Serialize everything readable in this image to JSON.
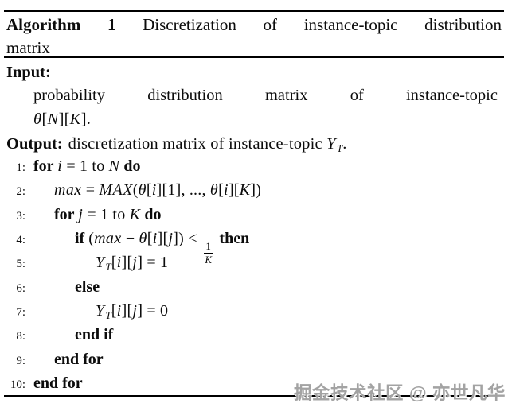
{
  "header": {
    "label_words": [
      "Algorithm",
      "1"
    ],
    "title_line1_words": [
      "Discretization",
      "of",
      "instance-topic",
      "distribution"
    ],
    "title_line2": "matrix"
  },
  "input": {
    "label": "Input:",
    "line1_words": [
      "probability",
      "distribution",
      "matrix",
      "of",
      "instance-topic"
    ],
    "line2_parts": [
      {
        "s": "m",
        "t": "θ"
      },
      {
        "s": "p",
        "t": "["
      },
      {
        "s": "m",
        "t": "N"
      },
      {
        "s": "p",
        "t": "]["
      },
      {
        "s": "m",
        "t": "K"
      },
      {
        "s": "p",
        "t": "]."
      }
    ]
  },
  "output": {
    "label": "Output:",
    "parts": [
      {
        "s": "p",
        "t": "discretization matrix of instance-topic "
      },
      {
        "s": "msub",
        "t": "Y_T"
      },
      {
        "s": "p",
        "t": "."
      }
    ]
  },
  "code": {
    "lines": [
      {
        "num": "1:",
        "indent": 0,
        "parts": [
          {
            "s": "kw",
            "t": "for "
          },
          {
            "s": "m",
            "t": "i"
          },
          {
            "s": "p",
            "t": " = 1 to "
          },
          {
            "s": "m",
            "t": "N"
          },
          {
            "s": "kw",
            "t": " do"
          }
        ]
      },
      {
        "num": "2:",
        "indent": 1,
        "parts": [
          {
            "s": "m",
            "t": "max"
          },
          {
            "s": "p",
            "t": " = "
          },
          {
            "s": "m",
            "t": "MAX"
          },
          {
            "s": "p",
            "t": "("
          },
          {
            "s": "m",
            "t": "θ"
          },
          {
            "s": "p",
            "t": "["
          },
          {
            "s": "m",
            "t": "i"
          },
          {
            "s": "p",
            "t": "][1], ..., "
          },
          {
            "s": "m",
            "t": "θ"
          },
          {
            "s": "p",
            "t": "["
          },
          {
            "s": "m",
            "t": "i"
          },
          {
            "s": "p",
            "t": "]["
          },
          {
            "s": "m",
            "t": "K"
          },
          {
            "s": "p",
            "t": "])"
          }
        ]
      },
      {
        "num": "3:",
        "indent": 1,
        "parts": [
          {
            "s": "kw",
            "t": "for "
          },
          {
            "s": "m",
            "t": "j"
          },
          {
            "s": "p",
            "t": " = 1 to "
          },
          {
            "s": "m",
            "t": "K"
          },
          {
            "s": "kw",
            "t": " do"
          }
        ]
      },
      {
        "num": "4:",
        "indent": 2,
        "parts": [
          {
            "s": "kw",
            "t": "if "
          },
          {
            "s": "p",
            "t": "("
          },
          {
            "s": "m",
            "t": "max"
          },
          {
            "s": "p",
            "t": " − "
          },
          {
            "s": "m",
            "t": "θ"
          },
          {
            "s": "p",
            "t": "["
          },
          {
            "s": "m",
            "t": "i"
          },
          {
            "s": "p",
            "t": "]["
          },
          {
            "s": "m",
            "t": "j"
          },
          {
            "s": "p",
            "t": "]) < "
          },
          {
            "s": "frac",
            "t": "1/K"
          },
          {
            "s": "kw",
            "t": " then"
          }
        ]
      },
      {
        "num": "5:",
        "indent": 3,
        "parts": [
          {
            "s": "msub",
            "t": "Y_T"
          },
          {
            "s": "p",
            "t": "["
          },
          {
            "s": "m",
            "t": "i"
          },
          {
            "s": "p",
            "t": "]["
          },
          {
            "s": "m",
            "t": "j"
          },
          {
            "s": "p",
            "t": "] = 1"
          }
        ]
      },
      {
        "num": "6:",
        "indent": 2,
        "parts": [
          {
            "s": "kw",
            "t": "else"
          }
        ]
      },
      {
        "num": "7:",
        "indent": 3,
        "parts": [
          {
            "s": "msub",
            "t": "Y_T"
          },
          {
            "s": "p",
            "t": "["
          },
          {
            "s": "m",
            "t": "i"
          },
          {
            "s": "p",
            "t": "]["
          },
          {
            "s": "m",
            "t": "j"
          },
          {
            "s": "p",
            "t": "] = 0"
          }
        ]
      },
      {
        "num": "8:",
        "indent": 2,
        "parts": [
          {
            "s": "kw",
            "t": "end if"
          }
        ]
      },
      {
        "num": "9:",
        "indent": 1,
        "parts": [
          {
            "s": "kw",
            "t": "end for"
          }
        ]
      },
      {
        "num": "10:",
        "indent": 0,
        "parts": [
          {
            "s": "kw",
            "t": "end for"
          }
        ]
      }
    ]
  },
  "watermark": "掘金技术社区 @ 亦世凡华"
}
